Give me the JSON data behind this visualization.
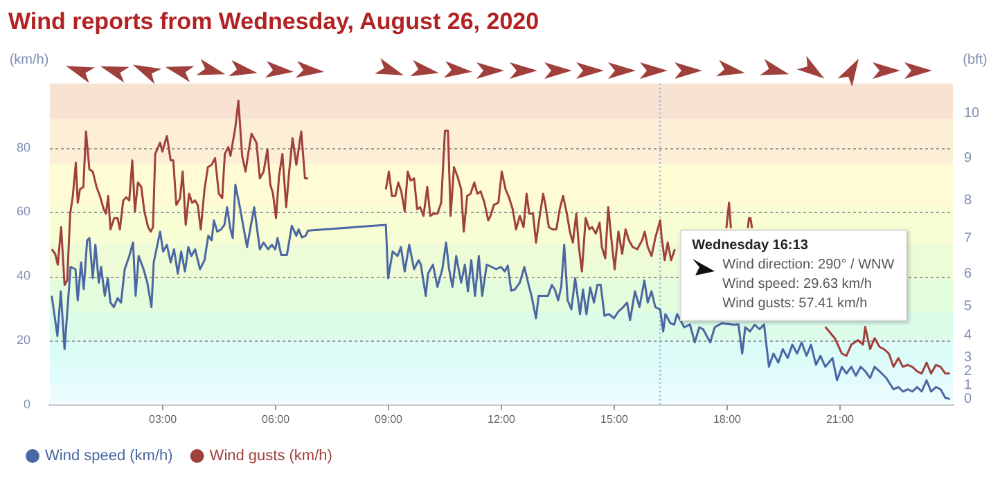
{
  "chart_data": {
    "type": "line",
    "title": "Wind reports from Wednesday, August 26, 2020",
    "ylabel": "(km/h)",
    "y2label": "(bft)",
    "xlim": [
      0,
      24
    ],
    "xticks": [
      {
        "value": 3,
        "label": "03:00"
      },
      {
        "value": 6,
        "label": "06:00"
      },
      {
        "value": 9,
        "label": "09:00"
      },
      {
        "value": 12,
        "label": "12:00"
      },
      {
        "value": 15,
        "label": "15:00"
      },
      {
        "value": 18,
        "label": "18:00"
      },
      {
        "value": 21,
        "label": "21:00"
      }
    ],
    "ylim": [
      0,
      100
    ],
    "yticks": [
      0,
      20,
      40,
      60,
      80
    ],
    "grid": "y",
    "legend": "bottom left",
    "series": [
      {
        "name": "Wind speed (km/h)",
        "color": "#4a67a3",
        "x": [
          0.05,
          0.2,
          0.29,
          0.39,
          0.55,
          0.68,
          0.74,
          0.83,
          0.9,
          0.99,
          1.05,
          1.14,
          1.21,
          1.3,
          1.36,
          1.46,
          1.54,
          1.61,
          1.7,
          1.8,
          1.89,
          1.99,
          2.11,
          2.21,
          2.28,
          2.36,
          2.49,
          2.59,
          2.7,
          2.76,
          2.93,
          3.01,
          3.11,
          3.21,
          3.3,
          3.4,
          3.49,
          3.59,
          3.68,
          3.76,
          3.86,
          3.99,
          4.11,
          4.21,
          4.3,
          4.36,
          4.45,
          4.55,
          4.64,
          4.71,
          4.8,
          4.86,
          4.93,
          5.05,
          5.24,
          5.43,
          5.58,
          5.68,
          5.8,
          5.9,
          5.99,
          6.05,
          6.15,
          6.3,
          6.43,
          6.55,
          6.61,
          6.7,
          6.8,
          6.86,
          8.93,
          8.99,
          9.11,
          9.24,
          9.33,
          9.43,
          9.55,
          9.68,
          9.8,
          9.86,
          9.99,
          10.05,
          10.18,
          10.3,
          10.43,
          10.53,
          10.61,
          10.7,
          10.8,
          10.93,
          11.03,
          11.11,
          11.2,
          11.3,
          11.4,
          11.49,
          11.61,
          11.74,
          11.86,
          11.99,
          12.09,
          12.17,
          12.26,
          12.36,
          12.49,
          12.61,
          12.71,
          12.8,
          12.92,
          12.99,
          13.11,
          13.24,
          13.34,
          13.42,
          13.51,
          13.59,
          13.67,
          13.76,
          13.86,
          13.96,
          14.09,
          14.17,
          14.26,
          14.36,
          14.46,
          14.55,
          14.64,
          14.74,
          14.86,
          14.99,
          15.11,
          15.24,
          15.34,
          15.42,
          15.55,
          15.67,
          15.8,
          15.89,
          15.99,
          16.09,
          16.22,
          16.3,
          16.36,
          16.49,
          16.59,
          16.67,
          16.86,
          17.01,
          17.14,
          17.26,
          17.36,
          17.55,
          17.67,
          17.86,
          18.17,
          18.3,
          18.4,
          18.48,
          18.61,
          18.73,
          18.86,
          18.98,
          19.11,
          19.23,
          19.36,
          19.48,
          19.61,
          19.73,
          19.86,
          19.98,
          20.11,
          20.23,
          20.36,
          20.48,
          20.61,
          20.8,
          20.92,
          21.05,
          21.17,
          21.3,
          21.42,
          21.55,
          21.67,
          21.8,
          21.92,
          22.05,
          22.23,
          22.42,
          22.55,
          22.67,
          22.8,
          22.92,
          23.05,
          23.17,
          23.3,
          23.42,
          23.55,
          23.67,
          23.8,
          23.92
        ],
        "values": [
          33.9,
          21.4,
          35.3,
          17.3,
          42.9,
          42.2,
          32.5,
          44.3,
          36,
          51.2,
          51.9,
          39.4,
          49.8,
          38,
          42.9,
          33.9,
          39.4,
          31.8,
          30.4,
          33.2,
          31.8,
          42.2,
          46.3,
          50.5,
          33.9,
          46.3,
          42.2,
          38,
          30.4,
          44.3,
          53.9,
          47.7,
          49.8,
          44.3,
          48.4,
          40.8,
          47.7,
          41.5,
          49.1,
          46.3,
          48.4,
          42.2,
          45,
          52.6,
          51.2,
          57.4,
          53.9,
          54.6,
          56,
          61.5,
          54.6,
          51.9,
          68.5,
          61.5,
          49.1,
          61.5,
          48.4,
          50.5,
          48.4,
          49.8,
          48.4,
          51.9,
          46.6,
          46.6,
          55.7,
          52.6,
          54.6,
          52.1,
          52.6,
          54.2,
          56,
          39.4,
          47.7,
          46.3,
          49.1,
          41.5,
          49.8,
          42.2,
          45,
          43.6,
          33.9,
          40.8,
          43.6,
          36.7,
          42.2,
          50.5,
          42.2,
          36.7,
          46.3,
          38,
          43.6,
          35.3,
          45,
          33.9,
          46.3,
          33.9,
          43.6,
          42.9,
          42.2,
          42.9,
          41.5,
          43.3,
          35.5,
          35.9,
          38,
          42.9,
          38,
          33.9,
          26.9,
          33.9,
          33.9,
          33.9,
          37.3,
          35.9,
          32.5,
          36.7,
          49.8,
          32.5,
          29.7,
          39.4,
          28.2,
          35.9,
          28.2,
          36.5,
          31.8,
          37.3,
          37.3,
          27.7,
          28.2,
          26.9,
          29,
          30.4,
          31.8,
          26.3,
          35.3,
          30.4,
          38.7,
          31.8,
          35.3,
          30.4,
          29.63,
          22.8,
          28.2,
          25.4,
          24.9,
          28.2,
          24.1,
          25,
          19.4,
          24.1,
          23.5,
          19.4,
          24.1,
          25.4,
          24.9,
          25,
          15.9,
          24.1,
          22.8,
          24.9,
          23.5,
          25,
          11.8,
          15.9,
          13.1,
          17.3,
          14.5,
          18.7,
          15.9,
          19.4,
          15.2,
          18.7,
          12.4,
          15.2,
          11.8,
          14.5,
          7.6,
          11.8,
          9.7,
          11.8,
          9,
          11.8,
          10.4,
          8.3,
          11.8,
          10.4,
          8.3,
          4.8,
          5.5,
          4.1,
          4.8,
          4.1,
          5.5,
          4.1,
          7.6,
          4.1,
          5.5,
          4.8,
          2.1,
          1.8
        ]
      },
      {
        "name": "Wind gusts (km/h)",
        "color": "#a0403c",
        "x": [
          0.05,
          0.14,
          0.21,
          0.3,
          0.39,
          0.46,
          0.54,
          0.61,
          0.69,
          0.74,
          0.8,
          0.89,
          0.96,
          1.05,
          1.14,
          1.24,
          1.33,
          1.43,
          1.49,
          1.55,
          1.61,
          1.71,
          1.8,
          1.86,
          1.95,
          2.03,
          2.11,
          2.19,
          2.26,
          2.34,
          2.43,
          2.51,
          2.61,
          2.68,
          2.74,
          2.8,
          2.93,
          2.99,
          3.11,
          3.21,
          3.28,
          3.36,
          3.46,
          3.53,
          3.61,
          3.7,
          3.78,
          3.86,
          3.93,
          4.01,
          4.11,
          4.2,
          4.3,
          4.39,
          4.49,
          4.58,
          4.65,
          4.74,
          4.8,
          4.93,
          5.01,
          5.11,
          5.2,
          5.28,
          5.36,
          5.49,
          5.58,
          5.68,
          5.78,
          5.86,
          5.93,
          6.01,
          6.09,
          6.18,
          6.28,
          6.36,
          6.45,
          6.55,
          6.68,
          6.78,
          6.86,
          7.9,
          8.93,
          9.01,
          9.09,
          9.18,
          9.26,
          9.34,
          9.43,
          9.51,
          9.59,
          9.68,
          9.76,
          9.84,
          9.93,
          10.03,
          10.11,
          10.2,
          10.3,
          10.4,
          10.5,
          10.58,
          10.65,
          10.74,
          10.83,
          10.93,
          11,
          11.09,
          11.18,
          11.28,
          11.36,
          11.45,
          11.55,
          11.65,
          11.71,
          11.8,
          11.92,
          12.01,
          12.11,
          12.21,
          12.3,
          12.39,
          12.49,
          12.59,
          12.67,
          12.74,
          12.84,
          12.92,
          13.01,
          13.11,
          13.17,
          13.26,
          13.36,
          13.46,
          13.55,
          13.64,
          13.74,
          13.82,
          13.9,
          13.99,
          14.06,
          14.14,
          14.24,
          14.34,
          14.41,
          14.51,
          14.61,
          14.67,
          14.76,
          14.84,
          14.92,
          15.01,
          15.11,
          15.21,
          15.3,
          15.39,
          15.49,
          15.61,
          15.74,
          15.81,
          15.89,
          15.99,
          16.09,
          16.22,
          16.26,
          16.34,
          16.42,
          16.51,
          16.61,
          16.7,
          17.98,
          18.05,
          18.1,
          18.3,
          18.55,
          18.58,
          18.62,
          18.66,
          20.5,
          20.61,
          20.86,
          21.05,
          21.17,
          21.3,
          21.48,
          21.61,
          21.67,
          21.8,
          21.92,
          22.05,
          22.17,
          22.3,
          22.42,
          22.55,
          22.67,
          22.8,
          22.92,
          23.05,
          23.17,
          23.3,
          23.42,
          23.55,
          23.67,
          23.8,
          23.92
        ],
        "values": [
          48.4,
          47,
          43.6,
          55.3,
          37.3,
          38.7,
          59.5,
          65,
          75.4,
          62.9,
          67.1,
          67.8,
          85.1,
          73.3,
          72.6,
          67.8,
          65,
          60.9,
          59.5,
          65,
          54.6,
          58.1,
          58.1,
          54.6,
          63.6,
          64.6,
          63.6,
          76.1,
          60.2,
          69.2,
          67.8,
          60.2,
          55.3,
          53.9,
          55.3,
          78.1,
          81.6,
          78.8,
          83.7,
          76.1,
          76.1,
          62.2,
          64.3,
          72.6,
          56,
          65.7,
          62.9,
          63.6,
          62.2,
          54.6,
          67.1,
          74,
          74.7,
          76.8,
          65.7,
          64.3,
          78.1,
          80.2,
          77.5,
          86.4,
          94.7,
          77.5,
          72.6,
          78.8,
          84.4,
          81.6,
          70.5,
          72.6,
          79.5,
          68.5,
          65.7,
          58.1,
          71.2,
          78.1,
          61.5,
          72.6,
          83,
          74.7,
          85.1,
          70.5,
          70.5,
          null,
          67.1,
          72.6,
          65,
          65,
          69.2,
          66.4,
          60.2,
          72.6,
          69.8,
          70.5,
          60.9,
          61.5,
          58.8,
          67.8,
          58.8,
          59.5,
          59.5,
          62.9,
          85.3,
          85.3,
          58.8,
          74,
          71.2,
          67.1,
          53.9,
          65,
          65.7,
          69.2,
          65.7,
          66.4,
          62.9,
          57.4,
          58.8,
          62.2,
          62.9,
          72.6,
          67.1,
          64.3,
          60.9,
          54.6,
          58.8,
          55.3,
          65.7,
          59.5,
          59.5,
          50.5,
          58.1,
          65.7,
          62.2,
          55.3,
          54.6,
          54.6,
          60.9,
          65,
          59.5,
          53.9,
          50.5,
          59.5,
          49.1,
          41.5,
          58.1,
          54.6,
          55.3,
          53.3,
          56.7,
          49.1,
          45.6,
          61.5,
          51.9,
          42.2,
          53.9,
          47,
          54.6,
          51.2,
          49.1,
          48.4,
          51.2,
          53.9,
          49.1,
          46.3,
          51.9,
          57.41,
          51.9,
          45,
          50.5,
          45,
          48.4,
          null,
          55,
          62.9,
          55,
          null,
          55,
          58.1,
          58.1,
          55,
          null,
          24.2,
          20.7,
          15.9,
          15.2,
          18.7,
          20.1,
          18.7,
          24.2,
          17.3,
          20.7,
          18,
          17.3,
          15.9,
          11.8,
          14.5,
          11.8,
          12.4,
          11.8,
          10.4,
          9.7,
          13.1,
          9.7,
          12.4,
          11.8,
          9.7,
          9.7
        ]
      }
    ],
    "bands": [
      {
        "axis": "y",
        "from": 0,
        "to": 1,
        "color": "#f3fdfe",
        "label": "0"
      },
      {
        "axis": "y",
        "from": 1,
        "to": 6,
        "color": "#eafcfd",
        "label": "1"
      },
      {
        "axis": "y",
        "from": 6,
        "to": 12,
        "color": "#e1fbfc",
        "label": "2"
      },
      {
        "axis": "y",
        "from": 12,
        "to": 20,
        "color": "#dcfcf8",
        "label": "3"
      },
      {
        "axis": "y",
        "from": 20,
        "to": 29,
        "color": "#dcfbe9",
        "label": "4"
      },
      {
        "axis": "y",
        "from": 29,
        "to": 39,
        "color": "#e3fcdc",
        "label": "5"
      },
      {
        "axis": "y",
        "from": 39,
        "to": 50,
        "color": "#edfcd6",
        "label": "6"
      },
      {
        "axis": "y",
        "from": 50,
        "to": 62,
        "color": "#f8fdd3",
        "label": "7"
      },
      {
        "axis": "y",
        "from": 62,
        "to": 75,
        "color": "#fffcd3",
        "label": "8"
      },
      {
        "axis": "y",
        "from": 75,
        "to": 89,
        "color": "#fcefd6",
        "label": "9"
      },
      {
        "axis": "y",
        "from": 89,
        "to": 100,
        "color": "#f8e3d3",
        "label": "10"
      }
    ],
    "ref_lines": [
      {
        "axis": "x",
        "value": 16.22,
        "color": "#8a9ee0",
        "line_style": "dotted"
      }
    ],
    "annotations": [
      "Wednesday 16:13",
      "Wind direction: 290° / WNW",
      "Wind speed: 29.63 km/h",
      "Wind gusts: 57.41 km/h"
    ]
  }
}
